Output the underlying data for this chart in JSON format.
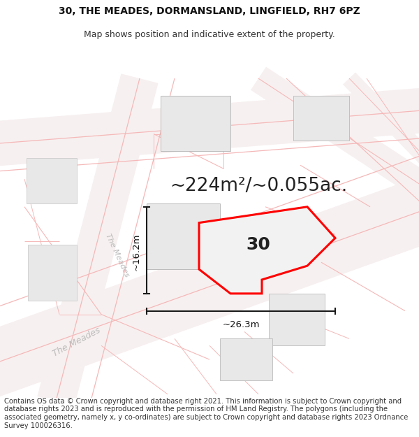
{
  "title_line1": "30, THE MEADES, DORMANSLAND, LINGFIELD, RH7 6PZ",
  "title_line2": "Map shows position and indicative extent of the property.",
  "area_text": "~224m²/~0.055ac.",
  "label_30": "30",
  "dim_height": "~16.2m",
  "dim_width": "~26.3m",
  "street_label_lower": "The Meades",
  "street_label_upper": "The Meades",
  "footer_text": "Contains OS data © Crown copyright and database right 2021. This information is subject to Crown copyright and database rights 2023 and is reproduced with the permission of HM Land Registry. The polygons (including the associated geometry, namely x, y co-ordinates) are subject to Crown copyright and database rights 2023 Ordnance Survey 100026316.",
  "bg_color": "#ffffff",
  "map_bg_color": "#ffffff",
  "highlight_color": "#ff0000",
  "dim_line_color": "#1a1a1a",
  "building_fill": "#e8e8e8",
  "building_edge": "#cccccc",
  "road_fill": "#f9eded",
  "road_line": "#f5b8b8",
  "plot_fill": "#f2f2f2",
  "street_text_color": "#bbbbbb",
  "title_fontsize": 10,
  "subtitle_fontsize": 9,
  "area_fontsize": 19,
  "label_fontsize": 18,
  "dim_fontsize": 9.5,
  "footer_fontsize": 7.2,
  "street_fontsize": 9
}
